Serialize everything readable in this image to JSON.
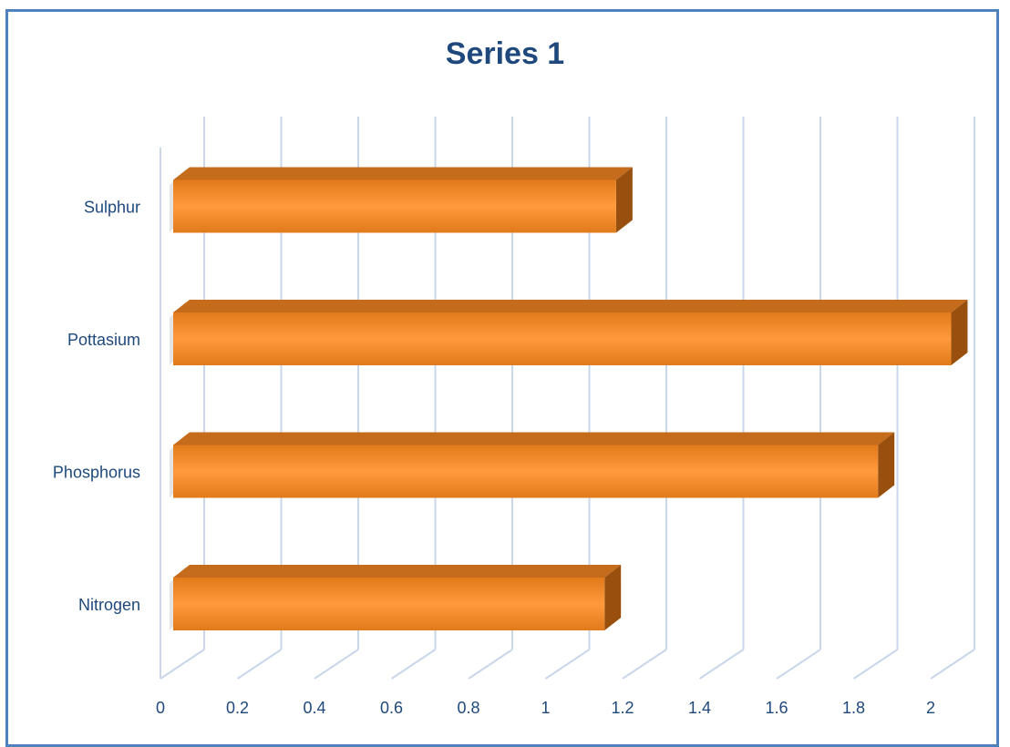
{
  "chart_data": {
    "type": "bar",
    "orientation": "horizontal",
    "style": "3d",
    "title": "Series 1",
    "xlabel": "",
    "ylabel": "",
    "categories": [
      "Nitrogen",
      "Phosphorus",
      "Pottasium",
      "Sulphur"
    ],
    "values": [
      1.12,
      1.83,
      2.02,
      1.15
    ],
    "xlim": [
      0,
      2
    ],
    "xticks": [
      "0",
      "0.2",
      "0.4",
      "0.6",
      "0.8",
      "1",
      "1.2",
      "1.4",
      "1.6",
      "1.8",
      "2"
    ],
    "grid": true,
    "legend": "none",
    "colors": {
      "bar_front_light": "#ff9a3c",
      "bar_front_dark": "#e07a1a",
      "bar_top": "#c46c1c",
      "bar_side": "#99500f",
      "gridline": "#c9d7ea",
      "frame": "#4f81bd",
      "text": "#1f497d"
    }
  }
}
